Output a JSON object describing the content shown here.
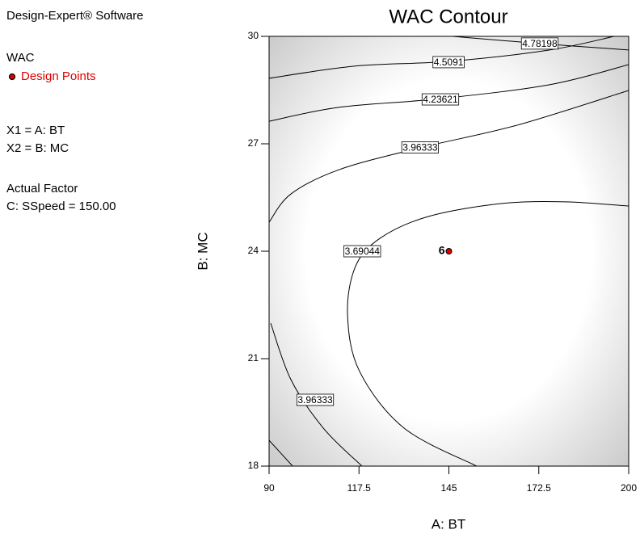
{
  "chart_data": {
    "type": "contour",
    "title": "WAC Contour",
    "xlabel": "A: BT",
    "ylabel": "B: MC",
    "xlim": [
      90,
      200
    ],
    "ylim": [
      18,
      30
    ],
    "xticks": [
      90,
      117.5,
      145,
      172.5,
      200
    ],
    "yticks": [
      18,
      21,
      24,
      27,
      30
    ],
    "info": [
      "Design-Expert® Software",
      "WAC",
      "Design Points",
      "X1 = A: BT",
      "X2 = B: MC",
      "Actual Factor",
      "C: SSpeed = 150.00"
    ],
    "point_color": "#e00000",
    "line_color": "#000000",
    "contours": [
      {
        "level": 3.69044,
        "x": [
          153.5,
          131.3,
          117.7,
          114.0,
          116.4,
          123.9,
          138.7,
          160.9,
          180.7,
          200
        ],
        "y": [
          18,
          19.06,
          20.64,
          22.22,
          23.57,
          24.36,
          24.97,
          25.33,
          25.38,
          25.26
        ],
        "label_at": [
          118.5,
          24
        ]
      },
      {
        "level": 3.96333,
        "x": [
          118.4,
          106.6,
          96.7,
          90.5
        ],
        "y": [
          18,
          19.06,
          20.41,
          21.99
        ],
        "label_at": [
          104.1,
          19.85
        ]
      },
      {
        "level": 3.96333,
        "x": [
          90,
          96.7,
          111.5,
          136.2,
          165.9,
          200
        ],
        "y": [
          24.81,
          25.6,
          26.28,
          26.89,
          27.52,
          28.49
        ],
        "label_at": [
          136.2,
          26.9
        ]
      },
      {
        "level": 4.23621,
        "x": [
          90,
          111.5,
          142.4,
          175.8,
          200
        ],
        "y": [
          27.63,
          28.02,
          28.26,
          28.65,
          29.21
        ],
        "label_at": [
          142.4,
          28.24
        ]
      },
      {
        "level": 4.5091,
        "x": [
          90,
          116.4,
          144.9,
          175.8,
          195.5
        ],
        "y": [
          28.83,
          29.17,
          29.3,
          29.62,
          30
        ],
        "label_at": [
          144.9,
          29.28
        ]
      },
      {
        "level": 4.78198,
        "x": [
          146.1,
          172.8,
          200
        ],
        "y": [
          30,
          29.8,
          29.62
        ],
        "label_at": [
          172.8,
          29.8
        ]
      },
      {
        "level": 4.23621,
        "x": [
          90,
          97.2
        ],
        "y": [
          18.72,
          18
        ]
      }
    ],
    "design_points": {
      "x": [
        145
      ],
      "y": [
        24
      ],
      "counts": [
        6
      ]
    }
  }
}
